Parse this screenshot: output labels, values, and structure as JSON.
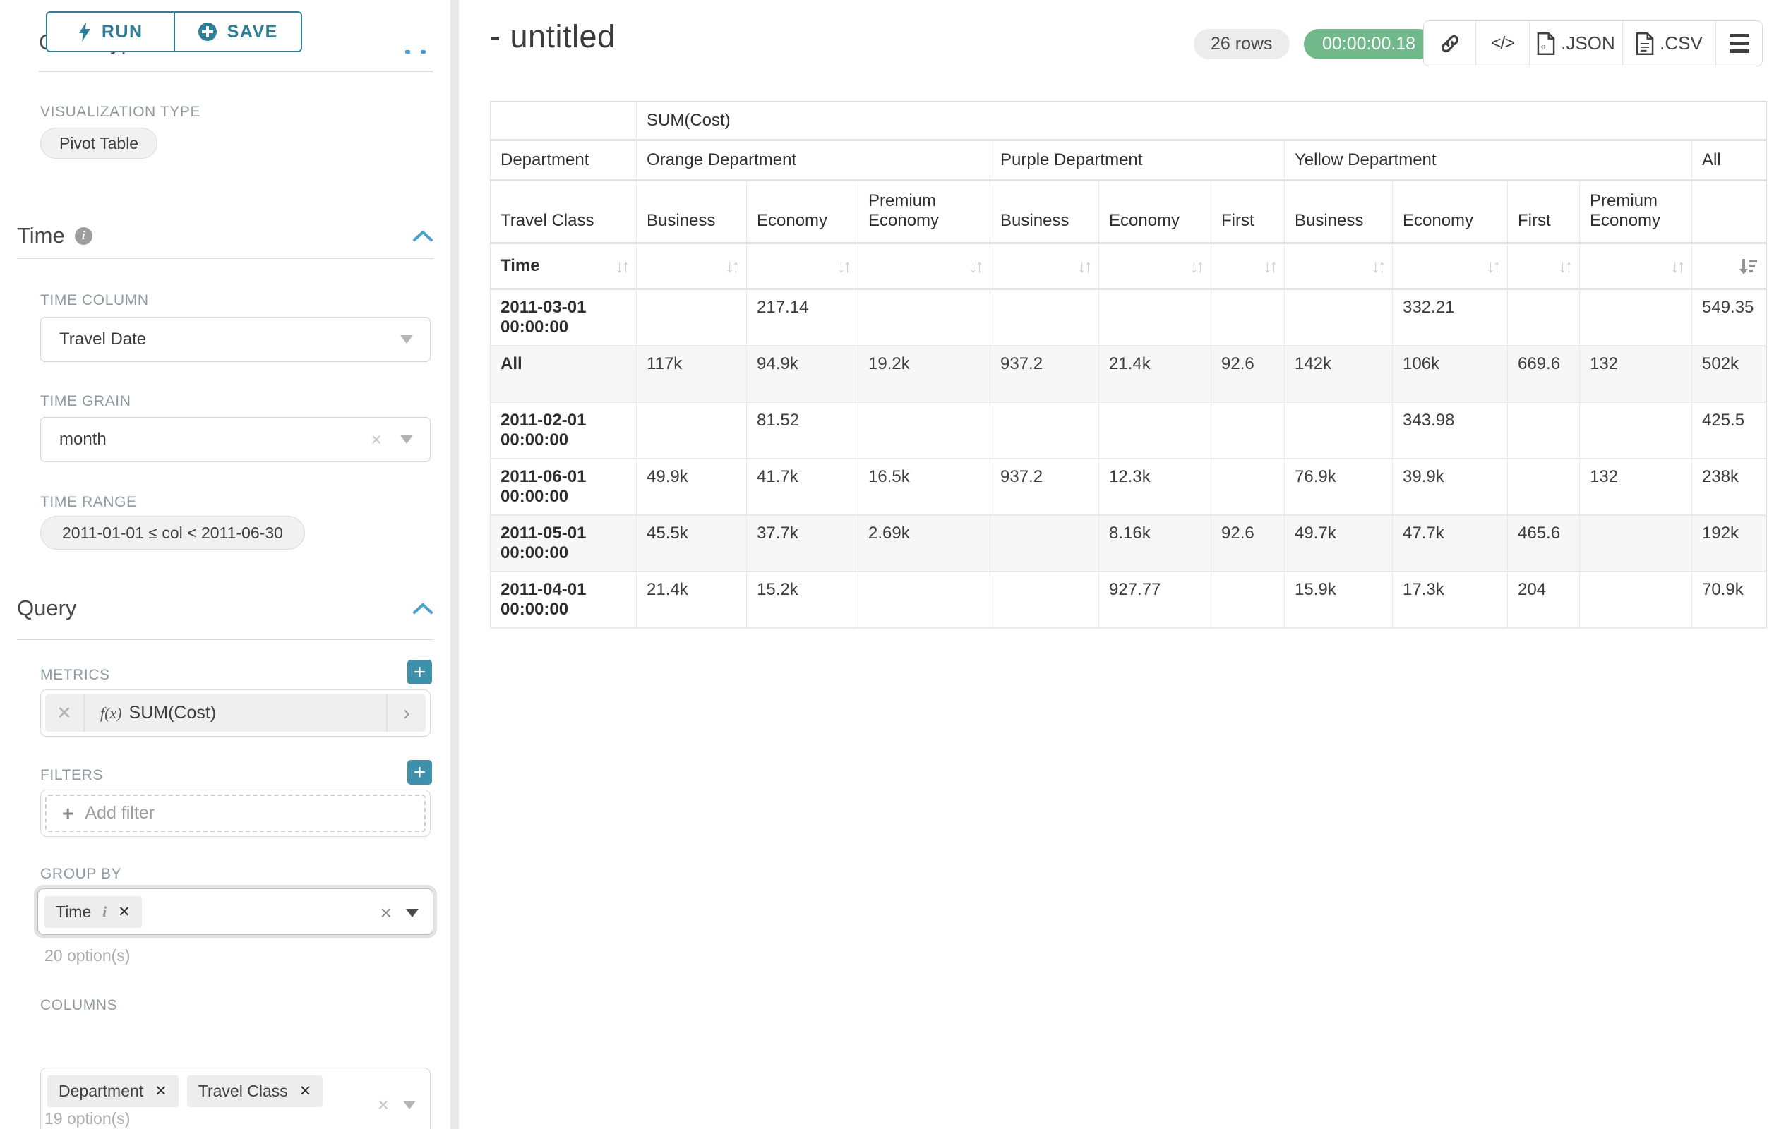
{
  "toolbar": {
    "run_label": "RUN",
    "save_label": "SAVE",
    "run_icon": "lightning-bolt-icon",
    "save_icon": "plus-circle-icon"
  },
  "panel": {
    "chart_type_heading": "Chart Type",
    "viz_type": {
      "label": "VISUALIZATION TYPE",
      "value": "Pivot Table"
    },
    "time_section": {
      "title": "Time",
      "info_icon": "info-icon",
      "collapse_icon": "chevron-up-icon",
      "time_column": {
        "label": "TIME COLUMN",
        "value": "Travel Date"
      },
      "time_grain": {
        "label": "TIME GRAIN",
        "value": "month"
      },
      "time_range": {
        "label": "TIME RANGE",
        "value": "2011-01-01 ≤ col < 2011-06-30"
      }
    },
    "query_section": {
      "title": "Query",
      "collapse_icon": "chevron-up-icon",
      "metrics": {
        "label": "METRICS",
        "fx": "f(x)",
        "value": "SUM(Cost)"
      },
      "filters": {
        "label": "FILTERS",
        "placeholder": "Add filter"
      },
      "group_by": {
        "label": "GROUP BY",
        "tags": [
          "Time"
        ],
        "hint": "20 option(s)"
      },
      "columns": {
        "label": "COLUMNS",
        "tags": [
          "Department",
          "Travel Class"
        ],
        "hint": "19 option(s)"
      }
    }
  },
  "header": {
    "title": "- untitled",
    "rows_badge": "26 rows",
    "timer_badge": "00:00:00.18",
    "actions": {
      "link_icon": "link-icon",
      "embed_icon": "embed-code-icon",
      "embed_glyph": "</>",
      "json_label": ".JSON",
      "csv_label": ".CSV",
      "menu_icon": "hamburger-menu-icon"
    }
  },
  "pivot_table": {
    "type": "table",
    "metric_header": "SUM(Cost)",
    "corner": {
      "department": "Department",
      "travel_class": "Travel Class",
      "time": "Time"
    },
    "department_groups": [
      {
        "label": "Orange Department",
        "span": 3
      },
      {
        "label": "Purple Department",
        "span": 3
      },
      {
        "label": "Yellow Department",
        "span": 4
      },
      {
        "label": "All",
        "span": 1
      }
    ],
    "travel_classes": [
      "Business",
      "Economy",
      "Premium Economy",
      "Business",
      "Economy",
      "First",
      "Business",
      "Economy",
      "First",
      "Premium Economy",
      ""
    ],
    "sort": {
      "column": "All",
      "direction": "desc"
    },
    "rows": [
      {
        "time": "2011-03-01 00:00:00",
        "values": [
          "",
          "217.14",
          "",
          "",
          "",
          "",
          "",
          "332.21",
          "",
          "",
          "549.35"
        ]
      },
      {
        "time": "All",
        "values": [
          "117k",
          "94.9k",
          "19.2k",
          "937.2",
          "21.4k",
          "92.6",
          "142k",
          "106k",
          "669.6",
          "132",
          "502k"
        ]
      },
      {
        "time": "2011-02-01 00:00:00",
        "values": [
          "",
          "81.52",
          "",
          "",
          "",
          "",
          "",
          "343.98",
          "",
          "",
          "425.5"
        ]
      },
      {
        "time": "2011-06-01 00:00:00",
        "values": [
          "49.9k",
          "41.7k",
          "16.5k",
          "937.2",
          "12.3k",
          "",
          "76.9k",
          "39.9k",
          "",
          "132",
          "238k"
        ]
      },
      {
        "time": "2011-05-01 00:00:00",
        "values": [
          "45.5k",
          "37.7k",
          "2.69k",
          "",
          "8.16k",
          "92.6",
          "49.7k",
          "47.7k",
          "465.6",
          "",
          "192k"
        ]
      },
      {
        "time": "2011-04-01 00:00:00",
        "values": [
          "21.4k",
          "15.2k",
          "",
          "",
          "927.77",
          "",
          "15.9k",
          "17.3k",
          "204",
          "",
          "70.9k"
        ]
      }
    ]
  }
}
